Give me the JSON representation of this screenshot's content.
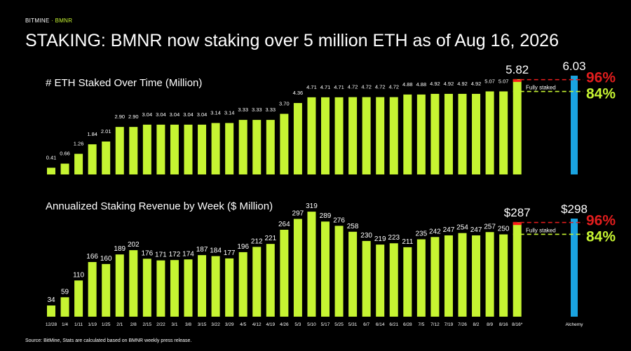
{
  "header": {
    "brand": "BITMINE",
    "brand_sep": "·",
    "ticker": "BMNR",
    "headline": "STAKING: BMNR now staking over 5 million ETH as of Aug 16, 2026"
  },
  "footer": {
    "source": "Source: BitMine, Stats are calculated based on BMNR weekly press release."
  },
  "colors": {
    "bar": "#c6f432",
    "alchemy": "#1aa3e0",
    "fully_staked": "#ff1a1a",
    "line_96": "#e11d1d",
    "line_84": "#c6f432"
  },
  "chart_data": [
    {
      "type": "bar",
      "title": "# ETH Staked Over Time (Million)",
      "categories": [
        "12/28",
        "1/4",
        "1/11",
        "1/19",
        "1/25",
        "2/1",
        "2/8",
        "2/15",
        "2/22",
        "3/1",
        "3/8",
        "3/15",
        "3/22",
        "3/29",
        "4/5",
        "4/12",
        "4/19",
        "4/26",
        "5/3",
        "5/10",
        "5/17",
        "5/25",
        "5/31",
        "6/7",
        "6/14",
        "6/21",
        "6/28",
        "7/5",
        "7/12",
        "7/19",
        "7/26",
        "8/2",
        "8/9",
        "8/16",
        "8/16*"
      ],
      "values": [
        0.41,
        0.66,
        1.26,
        1.84,
        2.01,
        2.9,
        2.9,
        3.04,
        3.04,
        3.04,
        3.04,
        3.04,
        3.14,
        3.14,
        3.33,
        3.33,
        3.33,
        3.7,
        4.36,
        4.71,
        4.71,
        4.71,
        4.72,
        4.72,
        4.72,
        4.72,
        4.88,
        4.88,
        4.92,
        4.92,
        4.92,
        4.92,
        5.07,
        5.07,
        5.82
      ],
      "value_labels": [
        "0.41",
        "0.66",
        "1.26",
        "1.84",
        "2.01",
        "2.90",
        "2.90",
        "3.04",
        "3.04",
        "3.04",
        "3.04",
        "3.04",
        "3.14",
        "3.14",
        "3.33",
        "3.33",
        "3.33",
        "3.70",
        "4.36",
        "4.71",
        "4.71",
        "4.71",
        "4.72",
        "4.72",
        "4.72",
        "4.72",
        "4.88",
        "4.88",
        "4.92",
        "4.92",
        "4.92",
        "4.92",
        "5.07",
        "5.07",
        "5.82"
      ],
      "comparison": {
        "name": "Alchemy",
        "value": 6.03,
        "label": "6.03"
      },
      "annotations": {
        "fully_staked": "Fully staked",
        "pct_high": "96%",
        "pct_low": "84%"
      }
    },
    {
      "type": "bar",
      "title": "Annualized Staking Revenue by Week ($ Million)",
      "categories": [
        "12/28",
        "1/4",
        "1/11",
        "1/19",
        "1/25",
        "2/1",
        "2/8",
        "2/15",
        "2/22",
        "3/1",
        "3/8",
        "3/15",
        "3/22",
        "3/29",
        "4/5",
        "4/12",
        "4/19",
        "4/26",
        "5/3",
        "5/10",
        "5/17",
        "5/25",
        "5/31",
        "6/7",
        "6/14",
        "6/21",
        "6/28",
        "7/5",
        "7/12",
        "7/19",
        "7/26",
        "8/2",
        "8/9",
        "8/16",
        "8/16*"
      ],
      "values": [
        34,
        59,
        110,
        166,
        160,
        189,
        202,
        176,
        171,
        172,
        174,
        187,
        184,
        177,
        196,
        212,
        221,
        264,
        297,
        319,
        289,
        276,
        258,
        230,
        219,
        223,
        211,
        235,
        242,
        247,
        254,
        247,
        257,
        250,
        287
      ],
      "value_labels": [
        "34",
        "59",
        "110",
        "166",
        "160",
        "189",
        "202",
        "176",
        "171",
        "172",
        "174",
        "187",
        "184",
        "177",
        "196",
        "212",
        "221",
        "264",
        "297",
        "319",
        "289",
        "276",
        "258",
        "230",
        "219",
        "223",
        "211",
        "235",
        "242",
        "247",
        "254",
        "247",
        "257",
        "250",
        "$287"
      ],
      "comparison": {
        "name": "Alchemy",
        "value": 298,
        "label": "$298"
      },
      "annotations": {
        "fully_staked": "Fully staked",
        "pct_high": "96%",
        "pct_low": "84%"
      }
    }
  ]
}
